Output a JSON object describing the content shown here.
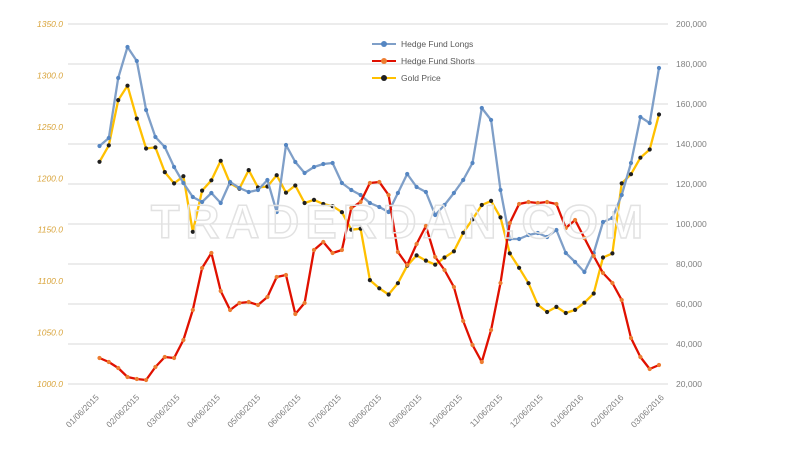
{
  "watermark": "TRADERDAN.COM",
  "legend": {
    "position": "top-center",
    "items": [
      "Hedge Fund Longs",
      "Hedge Fund Shorts",
      "Gold Price"
    ]
  },
  "colors": {
    "left_axis_text": "#d9a43b",
    "right_axis_text": "#7f7f7f",
    "x_axis_text": "#7f7f7f",
    "gridline": "#d9d9d9",
    "legend_text": "#595959",
    "watermark_outline": "#e2e2e2"
  },
  "chart_data": {
    "type": "line",
    "grid": true,
    "x_ticks": [
      "01/06/2015",
      "02/06/2015",
      "03/06/2015",
      "04/06/2015",
      "05/06/2015",
      "06/06/2015",
      "07/06/2015",
      "08/06/2015",
      "09/06/2015",
      "10/06/2015",
      "11/06/2015",
      "12/06/2015",
      "01/06/2016",
      "02/06/2016",
      "03/06/2016"
    ],
    "left_axis": {
      "min": 1000,
      "max": 1350,
      "tick_labels": [
        "1350.0",
        "1300.0",
        "1250.0",
        "1200.0",
        "1150.0",
        "1100.0",
        "1050.0",
        "1000.0"
      ]
    },
    "right_axis": {
      "min": 20000,
      "max": 200000,
      "tick_labels": [
        "200,000",
        "180,000",
        "160,000",
        "140,000",
        "120,000",
        "100,000",
        "80,000",
        "60,000",
        "40,000",
        "20,000"
      ]
    },
    "series": [
      {
        "name": "Gold Price",
        "axis": "left",
        "color": "#ffc000",
        "marker_color": "#1f1f1f",
        "values": [
          1216,
          1232,
          1276,
          1290,
          1258,
          1229,
          1230,
          1206,
          1195,
          1202,
          1148,
          1188,
          1198,
          1217,
          1195,
          1190,
          1208,
          1191,
          1192,
          1203,
          1186,
          1193,
          1176,
          1179,
          1175,
          1173,
          1167,
          1150,
          1151,
          1101,
          1093,
          1087,
          1098,
          1115,
          1125,
          1120,
          1116,
          1123,
          1129,
          1147,
          1160,
          1174,
          1178,
          1162,
          1127,
          1113,
          1098,
          1077,
          1070,
          1075,
          1069,
          1072,
          1079,
          1088,
          1123,
          1127,
          1195,
          1204,
          1220,
          1228,
          1262
        ]
      },
      {
        "name": "Hedge Fund Longs",
        "axis": "right",
        "color": "#7f9fc8",
        "marker_color": "#5586c2",
        "values": [
          139000,
          143000,
          173000,
          188500,
          181500,
          157000,
          143500,
          138500,
          128500,
          120500,
          113500,
          111000,
          115500,
          110500,
          121000,
          118000,
          116000,
          117000,
          122000,
          106000,
          139500,
          131000,
          125500,
          128500,
          130000,
          130500,
          120500,
          117000,
          114500,
          110500,
          108500,
          106000,
          115500,
          125000,
          118500,
          116000,
          104500,
          109500,
          115500,
          122000,
          130500,
          158000,
          152000,
          117000,
          92500,
          92500,
          94500,
          95500,
          93500,
          97000,
          85500,
          81000,
          76000,
          85500,
          101000,
          103000,
          114500,
          130500,
          153500,
          150500,
          178000
        ]
      },
      {
        "name": "Hedge Fund Shorts",
        "axis": "right",
        "color": "#e01000",
        "marker_color": "#ed7d31",
        "values": [
          33000,
          31000,
          28000,
          23500,
          22500,
          22000,
          28500,
          33500,
          33000,
          42000,
          57000,
          78000,
          85500,
          66500,
          57000,
          60500,
          61000,
          59500,
          63500,
          73500,
          74500,
          55000,
          60500,
          87000,
          91000,
          85500,
          87000,
          108000,
          111000,
          120500,
          121000,
          114500,
          86000,
          79500,
          90000,
          99000,
          83500,
          77000,
          68500,
          51500,
          39500,
          31000,
          47000,
          70500,
          100500,
          110000,
          111000,
          110500,
          111000,
          110000,
          98000,
          102000,
          93000,
          84000,
          75500,
          70500,
          62000,
          43000,
          33500,
          27500,
          29500
        ]
      }
    ]
  }
}
